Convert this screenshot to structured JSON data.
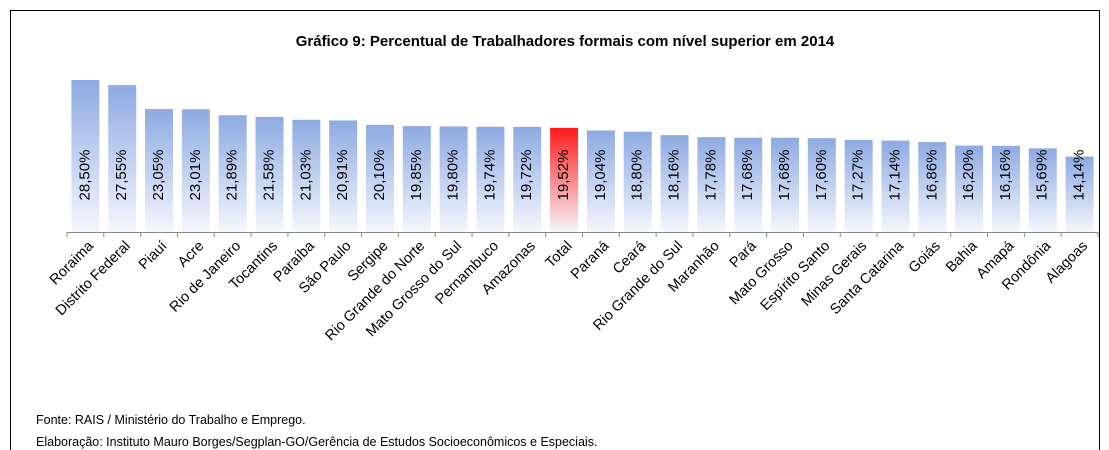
{
  "chart_data": {
    "type": "bar",
    "title": "Gráfico 9: Percentual de Trabalhadores formais com nível superior em 2014",
    "categories": [
      "Roraima",
      "Distrito Federal",
      "Piauí",
      "Acre",
      "Rio de Janeiro",
      "Tocantins",
      "Paraíba",
      "São Paulo",
      "Sergipe",
      "Rio Grande do Norte",
      "Mato Grosso do Sul",
      "Pernambuco",
      "Amazonas",
      "Total",
      "Paraná",
      "Ceará",
      "Rio Grande do Sul",
      "Maranhão",
      "Pará",
      "Mato Grosso",
      "Espírito Santo",
      "Minas Gerais",
      "Santa Catarina",
      "Goiás",
      "Bahia",
      "Amapá",
      "Rondônia",
      "Alagoas"
    ],
    "values": [
      28.5,
      27.55,
      23.05,
      23.01,
      21.89,
      21.58,
      21.03,
      20.91,
      20.1,
      19.85,
      19.8,
      19.74,
      19.72,
      19.52,
      19.04,
      18.8,
      18.16,
      17.78,
      17.68,
      17.68,
      17.6,
      17.27,
      17.14,
      16.86,
      16.2,
      16.16,
      15.69,
      14.14
    ],
    "value_labels": [
      "28,50%",
      "27,55%",
      "23,05%",
      "23,01%",
      "21,89%",
      "21,58%",
      "21,03%",
      "20,91%",
      "20,10%",
      "19,85%",
      "19,80%",
      "19,74%",
      "19,72%",
      "19,52%",
      "19,04%",
      "18,80%",
      "18,16%",
      "17,78%",
      "17,68%",
      "17,68%",
      "17,60%",
      "17,27%",
      "17,14%",
      "16,86%",
      "16,20%",
      "16,16%",
      "15,69%",
      "14,14%"
    ],
    "colors": [
      "#8eaae2",
      "#8eaae2",
      "#8eaae2",
      "#8eaae2",
      "#8eaae2",
      "#8eaae2",
      "#8eaae2",
      "#8eaae2",
      "#8eaae2",
      "#8eaae2",
      "#8eaae2",
      "#8eaae2",
      "#8eaae2",
      "#ff1a1a",
      "#8eaae2",
      "#8eaae2",
      "#8eaae2",
      "#8eaae2",
      "#8eaae2",
      "#8eaae2",
      "#8eaae2",
      "#8eaae2",
      "#8eaae2",
      "#8eaae2",
      "#8eaae2",
      "#8eaae2",
      "#8eaae2",
      "#8eaae2"
    ],
    "notes": [
      "Fonte: RAIS / Ministério do Trabalho e Emprego.",
      "Elaboração: Instituto Mauro Borges/Segplan-GO/Gerência de Estudos Socioeconômicos e Especiais."
    ]
  }
}
